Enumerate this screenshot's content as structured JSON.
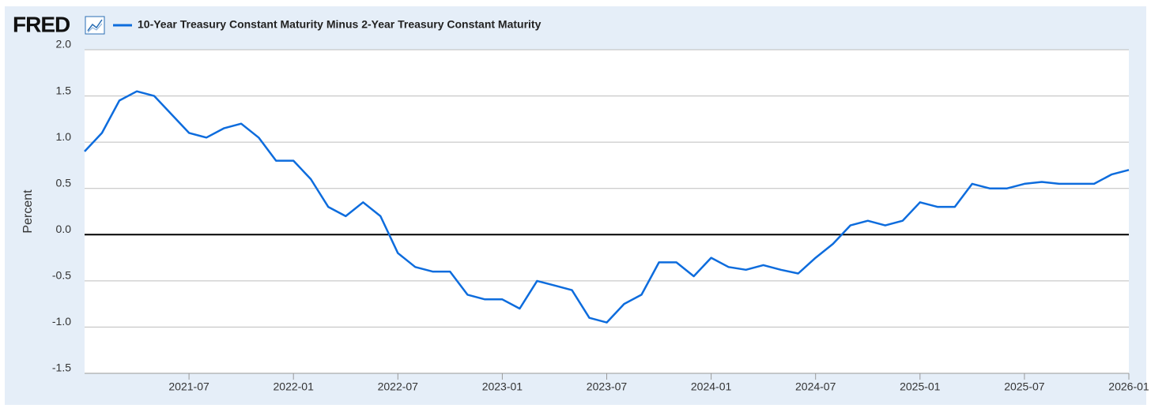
{
  "logo": "FRED",
  "chart_data": {
    "type": "line",
    "y_label": "Percent",
    "x": [
      "2021-01",
      "2021-02",
      "2021-03",
      "2021-04",
      "2021-05",
      "2021-06",
      "2021-07",
      "2021-08",
      "2021-09",
      "2021-10",
      "2021-11",
      "2021-12",
      "2022-01",
      "2022-02",
      "2022-03",
      "2022-04",
      "2022-05",
      "2022-06",
      "2022-07",
      "2022-08",
      "2022-09",
      "2022-10",
      "2022-11",
      "2022-12",
      "2023-01",
      "2023-02",
      "2023-03",
      "2023-04",
      "2023-05",
      "2023-06",
      "2023-07",
      "2023-08",
      "2023-09",
      "2023-10",
      "2023-11",
      "2023-12",
      "2024-01",
      "2024-02",
      "2024-03",
      "2024-04",
      "2024-05",
      "2024-06",
      "2024-07",
      "2024-08",
      "2024-09",
      "2024-10",
      "2024-11",
      "2024-12",
      "2025-01",
      "2025-02",
      "2025-03",
      "2025-04",
      "2025-05",
      "2025-06",
      "2025-07",
      "2025-08",
      "2025-09",
      "2025-10",
      "2025-11",
      "2025-12",
      "2026-01"
    ],
    "series": [
      {
        "name": "10-Year Treasury Constant Maturity Minus 2-Year Treasury Constant Maturity",
        "color": "#0d6cdd",
        "values": [
          0.9,
          1.1,
          1.45,
          1.55,
          1.5,
          1.3,
          1.1,
          1.05,
          1.15,
          1.2,
          1.05,
          0.8,
          0.8,
          0.6,
          0.3,
          0.2,
          0.35,
          0.2,
          -0.2,
          -0.35,
          -0.4,
          -0.4,
          -0.65,
          -0.7,
          -0.7,
          -0.8,
          -0.5,
          -0.55,
          -0.6,
          -0.9,
          -0.95,
          -0.75,
          -0.65,
          -0.3,
          -0.3,
          -0.45,
          -0.25,
          -0.35,
          -0.38,
          -0.33,
          -0.38,
          -0.42,
          -0.25,
          -0.1,
          0.1,
          0.15,
          0.1,
          0.15,
          0.35,
          0.3,
          0.3,
          0.55,
          0.5,
          0.5,
          0.55,
          0.57,
          0.55,
          0.55,
          0.55,
          0.65,
          0.7
        ]
      }
    ],
    "xlim": [
      "2021-01",
      "2026-01"
    ],
    "xticks": [
      "2021-07",
      "2022-01",
      "2022-07",
      "2023-01",
      "2023-07",
      "2024-01",
      "2024-07",
      "2025-01",
      "2025-07",
      "2026-01"
    ],
    "ylim": [
      -1.5,
      2.0
    ],
    "yticks": [
      -1.5,
      {
        "value": -1.0,
        "label": "-1.0"
      },
      -0.5,
      {
        "value": 0.0,
        "label": "0.0"
      },
      0.5,
      {
        "value": 1.0,
        "label": "1.0"
      },
      1.5,
      {
        "value": 2.0,
        "label": "2.0"
      }
    ],
    "grid": true,
    "zero_line": true
  }
}
